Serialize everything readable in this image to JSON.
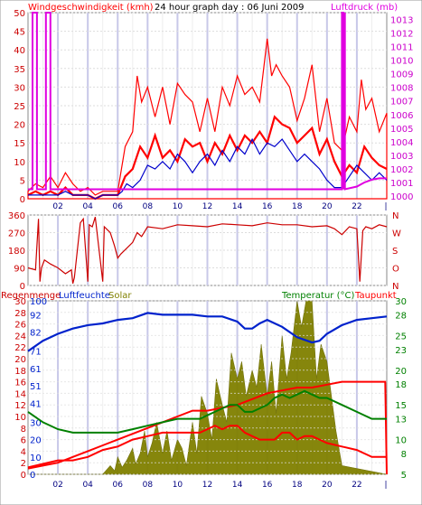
{
  "header": {
    "wind_label": "Windgeschwindigkeit (kmh)",
    "subtitle": "24 hour graph day : 06 Juni 2009",
    "pressure_label": "Luftdruck (mb)"
  },
  "colors": {
    "wind": "#ff0000",
    "wind_dark": "#cc0000",
    "pressure": "#e000e0",
    "wind_avg": "#0000cc",
    "direction": "#cc0000",
    "humidity": "#0022cc",
    "solar": "#808000",
    "temperature": "#008000",
    "dewpoint": "#ff0000",
    "rain": "#ff0000",
    "grid": "#dddddd",
    "day_lines": "#c8c8e8"
  },
  "chart_data": [
    {
      "type": "line",
      "title": "24 hour graph day : 06 Juni 2009",
      "x_ticks": [
        "02",
        "04",
        "06",
        "08",
        "10",
        "12",
        "14",
        "16",
        "18",
        "20",
        "22"
      ],
      "xlim": [
        0,
        24
      ],
      "y_left_label": "Windgeschwindigkeit (kmh)",
      "y_left_ticks": [
        "0",
        "5",
        "10",
        "15",
        "20",
        "25",
        "30",
        "35",
        "40",
        "45",
        "50"
      ],
      "ylim_left": [
        0,
        50
      ],
      "y_right_label": "Luftdruck (mb)",
      "y_right_ticks": [
        "1000",
        "1001",
        "1002",
        "1003",
        "1004",
        "1005",
        "1006",
        "1007",
        "1008",
        "1009",
        "1010",
        "1011",
        "1012",
        "1013"
      ],
      "ylim_right": [
        999.8,
        1013.5
      ],
      "series": [
        {
          "key": "gust",
          "axis": "left",
          "x": [
            0,
            0.5,
            1,
            1.5,
            2,
            2.5,
            3,
            3.5,
            4,
            4.5,
            5,
            5.5,
            6,
            6.5,
            7,
            7.3,
            7.6,
            8,
            8.5,
            9,
            9.5,
            10,
            10.5,
            11,
            11.5,
            12,
            12.5,
            13,
            13.5,
            14,
            14.5,
            15,
            15.5,
            16,
            16.3,
            16.6,
            17,
            17.5,
            18,
            18.5,
            19,
            19.5,
            20,
            20.5,
            21,
            21.5,
            22,
            22.3,
            22.6,
            23,
            23.5,
            24
          ],
          "y": [
            2,
            4,
            3,
            6,
            3,
            7,
            4,
            2,
            3,
            1,
            2,
            2,
            2,
            14,
            18,
            33,
            26,
            30,
            22,
            30,
            20,
            31,
            28,
            26,
            18,
            27,
            18,
            30,
            25,
            33,
            28,
            30,
            26,
            43,
            33,
            36,
            33,
            30,
            21,
            27,
            36,
            18,
            27,
            15,
            13,
            22,
            18,
            32,
            24,
            27,
            18,
            23
          ]
        },
        {
          "key": "wind",
          "axis": "left",
          "x": [
            0,
            0.5,
            1,
            1.5,
            2,
            2.5,
            3,
            3.5,
            4,
            4.5,
            5,
            5.5,
            6,
            6.5,
            7,
            7.5,
            8,
            8.5,
            9,
            9.5,
            10,
            10.5,
            11,
            11.5,
            12,
            12.5,
            13,
            13.5,
            14,
            14.5,
            15,
            15.5,
            16,
            16.5,
            17,
            17.5,
            18,
            18.5,
            19,
            19.5,
            20,
            20.5,
            21,
            21.5,
            22,
            22.5,
            23,
            23.5,
            24
          ],
          "y": [
            1,
            2,
            1,
            2,
            1,
            3,
            1,
            1,
            1,
            0,
            1,
            1,
            1,
            6,
            8,
            14,
            11,
            17,
            11,
            13,
            10,
            16,
            14,
            15,
            10,
            15,
            12,
            17,
            13,
            17,
            15,
            18,
            15,
            22,
            20,
            19,
            15,
            17,
            19,
            12,
            16,
            10,
            6,
            9,
            7,
            14,
            11,
            9,
            8
          ]
        },
        {
          "key": "wind_avg",
          "axis": "left",
          "x": [
            0,
            0.5,
            1,
            1.5,
            2,
            2.5,
            3,
            3.5,
            4,
            4.5,
            5,
            5.5,
            6,
            6.3,
            6.6,
            7,
            7.5,
            8,
            8.5,
            9,
            9.5,
            10,
            10.5,
            11,
            11.5,
            12,
            12.5,
            13,
            13.5,
            14,
            14.5,
            15,
            15.5,
            16,
            16.5,
            17,
            17.5,
            18,
            18.5,
            19,
            19.5,
            20,
            20.5,
            21,
            21.5,
            22,
            22.5,
            23,
            23.5,
            24
          ],
          "y": [
            1,
            1,
            1,
            1,
            1,
            2,
            1,
            1,
            1,
            0,
            1,
            1,
            1,
            2,
            4,
            3,
            5,
            9,
            8,
            10,
            8,
            12,
            10,
            7,
            10,
            12,
            9,
            13,
            10,
            14,
            12,
            16,
            12,
            15,
            14,
            16,
            13,
            10,
            12,
            10,
            8,
            5,
            3,
            3,
            6,
            9,
            7,
            5,
            7,
            5
          ]
        },
        {
          "key": "pressure",
          "axis": "right",
          "x": [
            0,
            0.3,
            0.3,
            0.6,
            0.6,
            1.2,
            1.2,
            1.5,
            1.5,
            21.0,
            21.0,
            21.1,
            21.1,
            21.2,
            21.2,
            22,
            22.5,
            23,
            23.5,
            24
          ],
          "y": [
            1000.5,
            1000.5,
            1013.5,
            1013.5,
            1000.5,
            1000.5,
            1013.5,
            1013.5,
            1000.5,
            1000.5,
            1013.5,
            1013.5,
            1000.5,
            1013.5,
            1000.5,
            1000.7,
            1001.0,
            1001.2,
            1001.3,
            1001.3
          ]
        }
      ]
    },
    {
      "type": "line",
      "x_ticks": [],
      "xlim": [
        0,
        24
      ],
      "y_left_ticks": [
        "360",
        "270",
        "180",
        "90",
        "0"
      ],
      "ylim_left": [
        0,
        360
      ],
      "y_right_ticks": [
        "N",
        "W",
        "S",
        "O",
        "N"
      ],
      "series": [
        {
          "key": "direction",
          "axis": "left",
          "x": [
            0,
            0.5,
            0.7,
            0.8,
            0.9,
            1.1,
            1.3,
            1.5,
            2.0,
            2.5,
            2.9,
            3.0,
            3.1,
            3.5,
            3.7,
            4.0,
            4.1,
            4.3,
            4.5,
            5.0,
            5.1,
            5.5,
            5.8,
            6.0,
            6.2,
            6.6,
            7.0,
            7.3,
            7.6,
            8,
            9,
            10,
            11,
            12,
            13,
            14,
            15,
            16,
            17,
            18,
            19,
            20,
            20.5,
            21,
            21.5,
            22,
            22.2,
            22.4,
            22.6,
            23,
            23.5,
            24
          ],
          "y": [
            90,
            80,
            340,
            20,
            90,
            130,
            120,
            110,
            90,
            60,
            80,
            10,
            40,
            320,
            340,
            20,
            310,
            300,
            350,
            20,
            300,
            270,
            200,
            140,
            160,
            190,
            220,
            270,
            250,
            300,
            290,
            310,
            305,
            300,
            315,
            310,
            305,
            320,
            310,
            310,
            300,
            305,
            290,
            260,
            300,
            290,
            20,
            280,
            300,
            290,
            310,
            300
          ]
        }
      ]
    },
    {
      "type": "area",
      "x_ticks": [
        "02",
        "04",
        "06",
        "08",
        "10",
        "12",
        "14",
        "16",
        "18",
        "20",
        "22"
      ],
      "xlim": [
        0,
        24
      ],
      "y_left_labels": [
        "Regenmenge",
        "Luftfeuchte"
      ],
      "y_left_ticks_rain": [
        "0",
        "2",
        "4",
        "6",
        "8",
        "10",
        "12",
        "14",
        "16",
        "18",
        "20",
        "22",
        "24",
        "26",
        "28",
        "30"
      ],
      "y_left_ticks_humidity": [
        "0",
        "10",
        "20",
        "30",
        "41",
        "51",
        "61",
        "71",
        "82",
        "92",
        "100"
      ],
      "ylim_rain": [
        0,
        30
      ],
      "ylim_humidity": [
        0,
        100
      ],
      "y_right_labels": [
        "Temperatur (°C)",
        "Taupunkt"
      ],
      "y_right_ticks": [
        "5",
        "8",
        "10",
        "13",
        "15",
        "18",
        "20",
        "23",
        "25",
        "28",
        "30"
      ],
      "ylim_temperature": [
        5,
        30
      ],
      "solar_label": "Solar",
      "series": [
        {
          "key": "humidity",
          "axis": "humidity",
          "x": [
            0,
            1,
            2,
            3,
            4,
            5,
            6,
            7,
            8,
            9,
            10,
            11,
            12,
            13,
            14,
            14.5,
            15,
            15.5,
            16,
            17,
            18,
            19,
            19.5,
            20,
            21,
            22,
            23,
            24
          ],
          "y": [
            71,
            77,
            81,
            84,
            86,
            87,
            89,
            90,
            93,
            92,
            92,
            92,
            91,
            91,
            88,
            84,
            84,
            87,
            89,
            85,
            79,
            76,
            77,
            81,
            86,
            89,
            90,
            91
          ]
        },
        {
          "key": "temperature",
          "axis": "temperature",
          "x": [
            0,
            1,
            2,
            3,
            4,
            5,
            6,
            7,
            8,
            9,
            10,
            11,
            11.5,
            12,
            12.5,
            13,
            13.5,
            14,
            14.5,
            15,
            15.5,
            16,
            16.5,
            17,
            17.5,
            18,
            18.5,
            19,
            19.5,
            20,
            21,
            22,
            23,
            24
          ],
          "y": [
            14,
            12.5,
            11.5,
            11,
            11,
            11,
            11,
            11.5,
            12,
            12.5,
            13,
            13,
            13,
            13.5,
            14,
            14.5,
            15,
            15,
            14,
            14,
            14.5,
            15,
            16,
            16.5,
            16,
            16.5,
            17,
            16.5,
            16,
            16,
            15,
            14,
            13,
            13
          ]
        },
        {
          "key": "dewpoint",
          "axis": "temperature",
          "x": [
            0,
            1,
            2,
            3,
            4,
            5,
            6,
            7,
            8,
            9,
            10,
            11,
            11.5,
            12,
            12.5,
            13,
            13.5,
            14,
            14.5,
            15,
            15.5,
            16,
            16.5,
            17,
            17.5,
            18,
            18.5,
            19,
            19.5,
            20,
            21,
            22,
            23,
            24
          ],
          "y": [
            6,
            6.5,
            7,
            7,
            7.5,
            8.5,
            9,
            10,
            10.5,
            11,
            11,
            11,
            11,
            11.5,
            12,
            11.5,
            12,
            12,
            11,
            10.5,
            10,
            10,
            10,
            11,
            11,
            10,
            10.5,
            10.5,
            10,
            9.5,
            9,
            8.5,
            7.5,
            7.5
          ]
        },
        {
          "key": "rain",
          "axis": "rain",
          "x": [
            0,
            1,
            2,
            3,
            4,
            5,
            6,
            7,
            8,
            9,
            10,
            11,
            12,
            13,
            14,
            15,
            16,
            17,
            18,
            19,
            20,
            21,
            22,
            23,
            23.9,
            24
          ],
          "y": [
            1,
            1.5,
            2,
            3,
            4,
            5,
            6,
            7,
            8,
            9,
            10,
            11,
            11,
            11.5,
            12,
            13,
            14,
            14.5,
            15,
            15,
            15.5,
            16,
            16,
            16,
            16,
            0
          ]
        },
        {
          "key": "solar",
          "axis": "humidity",
          "x": [
            0,
            5,
            5.2,
            5.5,
            5.8,
            6,
            6.3,
            6.6,
            7,
            7.2,
            7.5,
            7.8,
            8,
            8.3,
            8.6,
            9,
            9.3,
            9.6,
            10,
            10.3,
            10.6,
            11,
            11.3,
            11.6,
            12,
            12.3,
            12.6,
            13,
            13.3,
            13.6,
            14,
            14.3,
            14.6,
            15,
            15.3,
            15.6,
            16,
            16.3,
            16.6,
            17,
            17.3,
            17.6,
            18,
            18.3,
            18.6,
            19,
            19.3,
            19.6,
            20,
            20.3,
            20.6,
            21,
            24
          ],
          "y": [
            0,
            0,
            2,
            5,
            2,
            10,
            4,
            8,
            15,
            6,
            12,
            25,
            10,
            18,
            30,
            12,
            25,
            8,
            20,
            15,
            5,
            30,
            12,
            45,
            35,
            20,
            55,
            40,
            30,
            70,
            55,
            65,
            45,
            60,
            50,
            75,
            45,
            65,
            35,
            80,
            55,
            70,
            100,
            85,
            100,
            100,
            55,
            75,
            65,
            45,
            25,
            5,
            0
          ]
        }
      ]
    }
  ]
}
